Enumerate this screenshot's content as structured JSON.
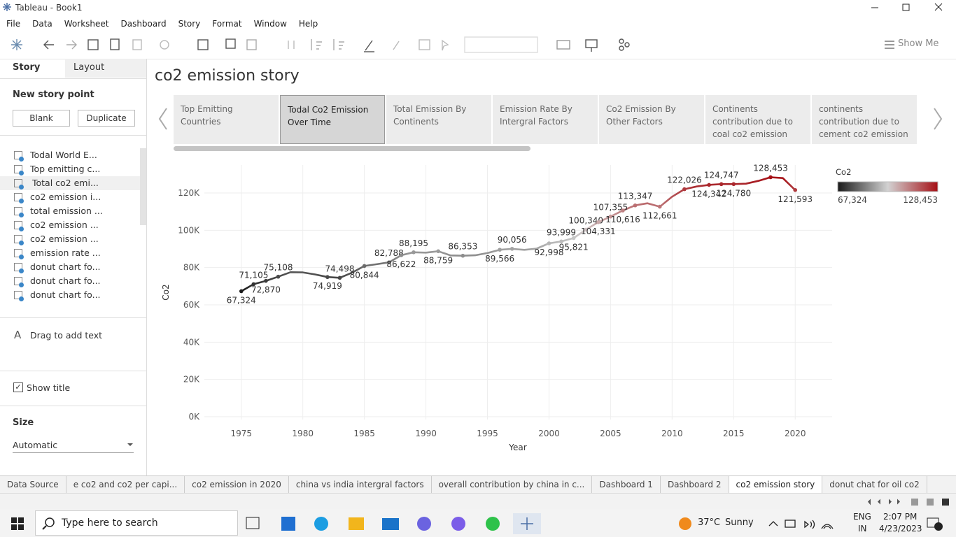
{
  "window": {
    "title": "Tableau - Book1"
  },
  "menu": [
    "File",
    "Data",
    "Worksheet",
    "Dashboard",
    "Story",
    "Format",
    "Window",
    "Help"
  ],
  "toolbar": {
    "show_me": "Show Me"
  },
  "sidebar": {
    "tabs": [
      "Story",
      "Layout"
    ],
    "new_story_point": "New story point",
    "buttons": [
      "Blank",
      "Duplicate"
    ],
    "items": [
      "Todal World E...",
      "Top emitting c...",
      "Total co2 emi...",
      "co2 emission i...",
      "total emission ...",
      "co2 emission ...",
      "co2 emission ...",
      "emission rate ...",
      "donut chart fo...",
      "donut chart fo...",
      "donut chart fo..."
    ],
    "drag_text": "Drag to add text",
    "show_title": "Show title",
    "size_label": "Size",
    "size_value": "Automatic"
  },
  "story": {
    "title": "co2 emission story",
    "points": [
      "Top Emitting Countries",
      "Todal Co2 Emission Over Time",
      "Total Emission By Continents",
      "Emission Rate By Intergral Factors",
      "Co2 Emission By Other Factors",
      "Continents contribution due to coal co2 emission",
      "continents contribution due to cement co2 emission"
    ],
    "selected": 1
  },
  "chart_data": {
    "type": "line",
    "x_label": "Year",
    "y_label": "Co2",
    "x": [
      1975,
      1976,
      1977,
      1978,
      1979,
      1980,
      1981,
      1982,
      1983,
      1984,
      1985,
      1986,
      1987,
      1988,
      1989,
      1990,
      1991,
      1992,
      1993,
      1994,
      1995,
      1996,
      1997,
      1998,
      1999,
      2000,
      2001,
      2002,
      2003,
      2004,
      2005,
      2006,
      2007,
      2008,
      2009,
      2010,
      2011,
      2012,
      2013,
      2014,
      2015,
      2016,
      2017,
      2018,
      2019,
      2020
    ],
    "values": [
      67324,
      71105,
      72870,
      75108,
      77500,
      77400,
      76300,
      74919,
      74498,
      77300,
      80844,
      81800,
      82788,
      86622,
      88195,
      88000,
      88759,
      86500,
      86353,
      86600,
      87800,
      89566,
      90056,
      89500,
      90200,
      92998,
      93999,
      95821,
      100340,
      104331,
      107355,
      110616,
      113347,
      114500,
      112661,
      118000,
      122026,
      123500,
      124342,
      124747,
      124780,
      125000,
      126500,
      128453,
      128000,
      121593
    ],
    "value_labels": [
      "67,324",
      "71,105",
      "72,870",
      "75,108",
      null,
      null,
      null,
      "74,919",
      "74,498",
      null,
      "80,844",
      null,
      "82,788",
      "86,622",
      "88,195",
      null,
      "88,759",
      null,
      "86,353",
      null,
      null,
      "89,566",
      "90,056",
      null,
      null,
      "92,998",
      "93,999",
      "95,821",
      "100,340",
      "104,331",
      "107,355",
      "110,616",
      "113,347",
      null,
      "112,661",
      null,
      "122,026",
      null,
      "124,342",
      "124,747",
      "124,780",
      null,
      null,
      "128,453",
      null,
      "121,593"
    ],
    "xlim": [
      1972,
      2023
    ],
    "ylim": [
      0,
      135000
    ],
    "xticks": [
      1975,
      1980,
      1985,
      1990,
      1995,
      2000,
      2005,
      2010,
      2015,
      2020
    ],
    "yticks": [
      {
        "value": 0,
        "label": "0K"
      },
      {
        "value": 20000,
        "label": "20K"
      },
      {
        "value": 40000,
        "label": "40K"
      },
      {
        "value": 60000,
        "label": "60K"
      },
      {
        "value": 80000,
        "label": "80K"
      },
      {
        "value": 100000,
        "label": "100K"
      },
      {
        "value": 120000,
        "label": "120K"
      }
    ],
    "grid": true,
    "legend": {
      "title": "Co2",
      "position": "right",
      "range": [
        {
          "value": 67324,
          "label": "67,324"
        },
        {
          "value": 128453,
          "label": "128,453"
        }
      ],
      "colors": [
        "#1a1a1a",
        "#d2d2d2",
        "#a50f15"
      ]
    }
  },
  "sheet_tabs": {
    "tabs": [
      "Data Source",
      "e co2 and co2 per capi...",
      "co2 emission in 2020",
      "china vs india intergral factors",
      "overall contribution by china in c...",
      "Dashboard 1",
      "Dashboard 2",
      "co2 emission story",
      "donut chat for oil co2"
    ],
    "active": 7
  },
  "taskbar": {
    "search": "Type here to search",
    "temperature": "37°C",
    "weather": "Sunny",
    "language": [
      "ENG",
      "IN"
    ],
    "time": "2:07 PM",
    "date": "4/23/2023"
  }
}
